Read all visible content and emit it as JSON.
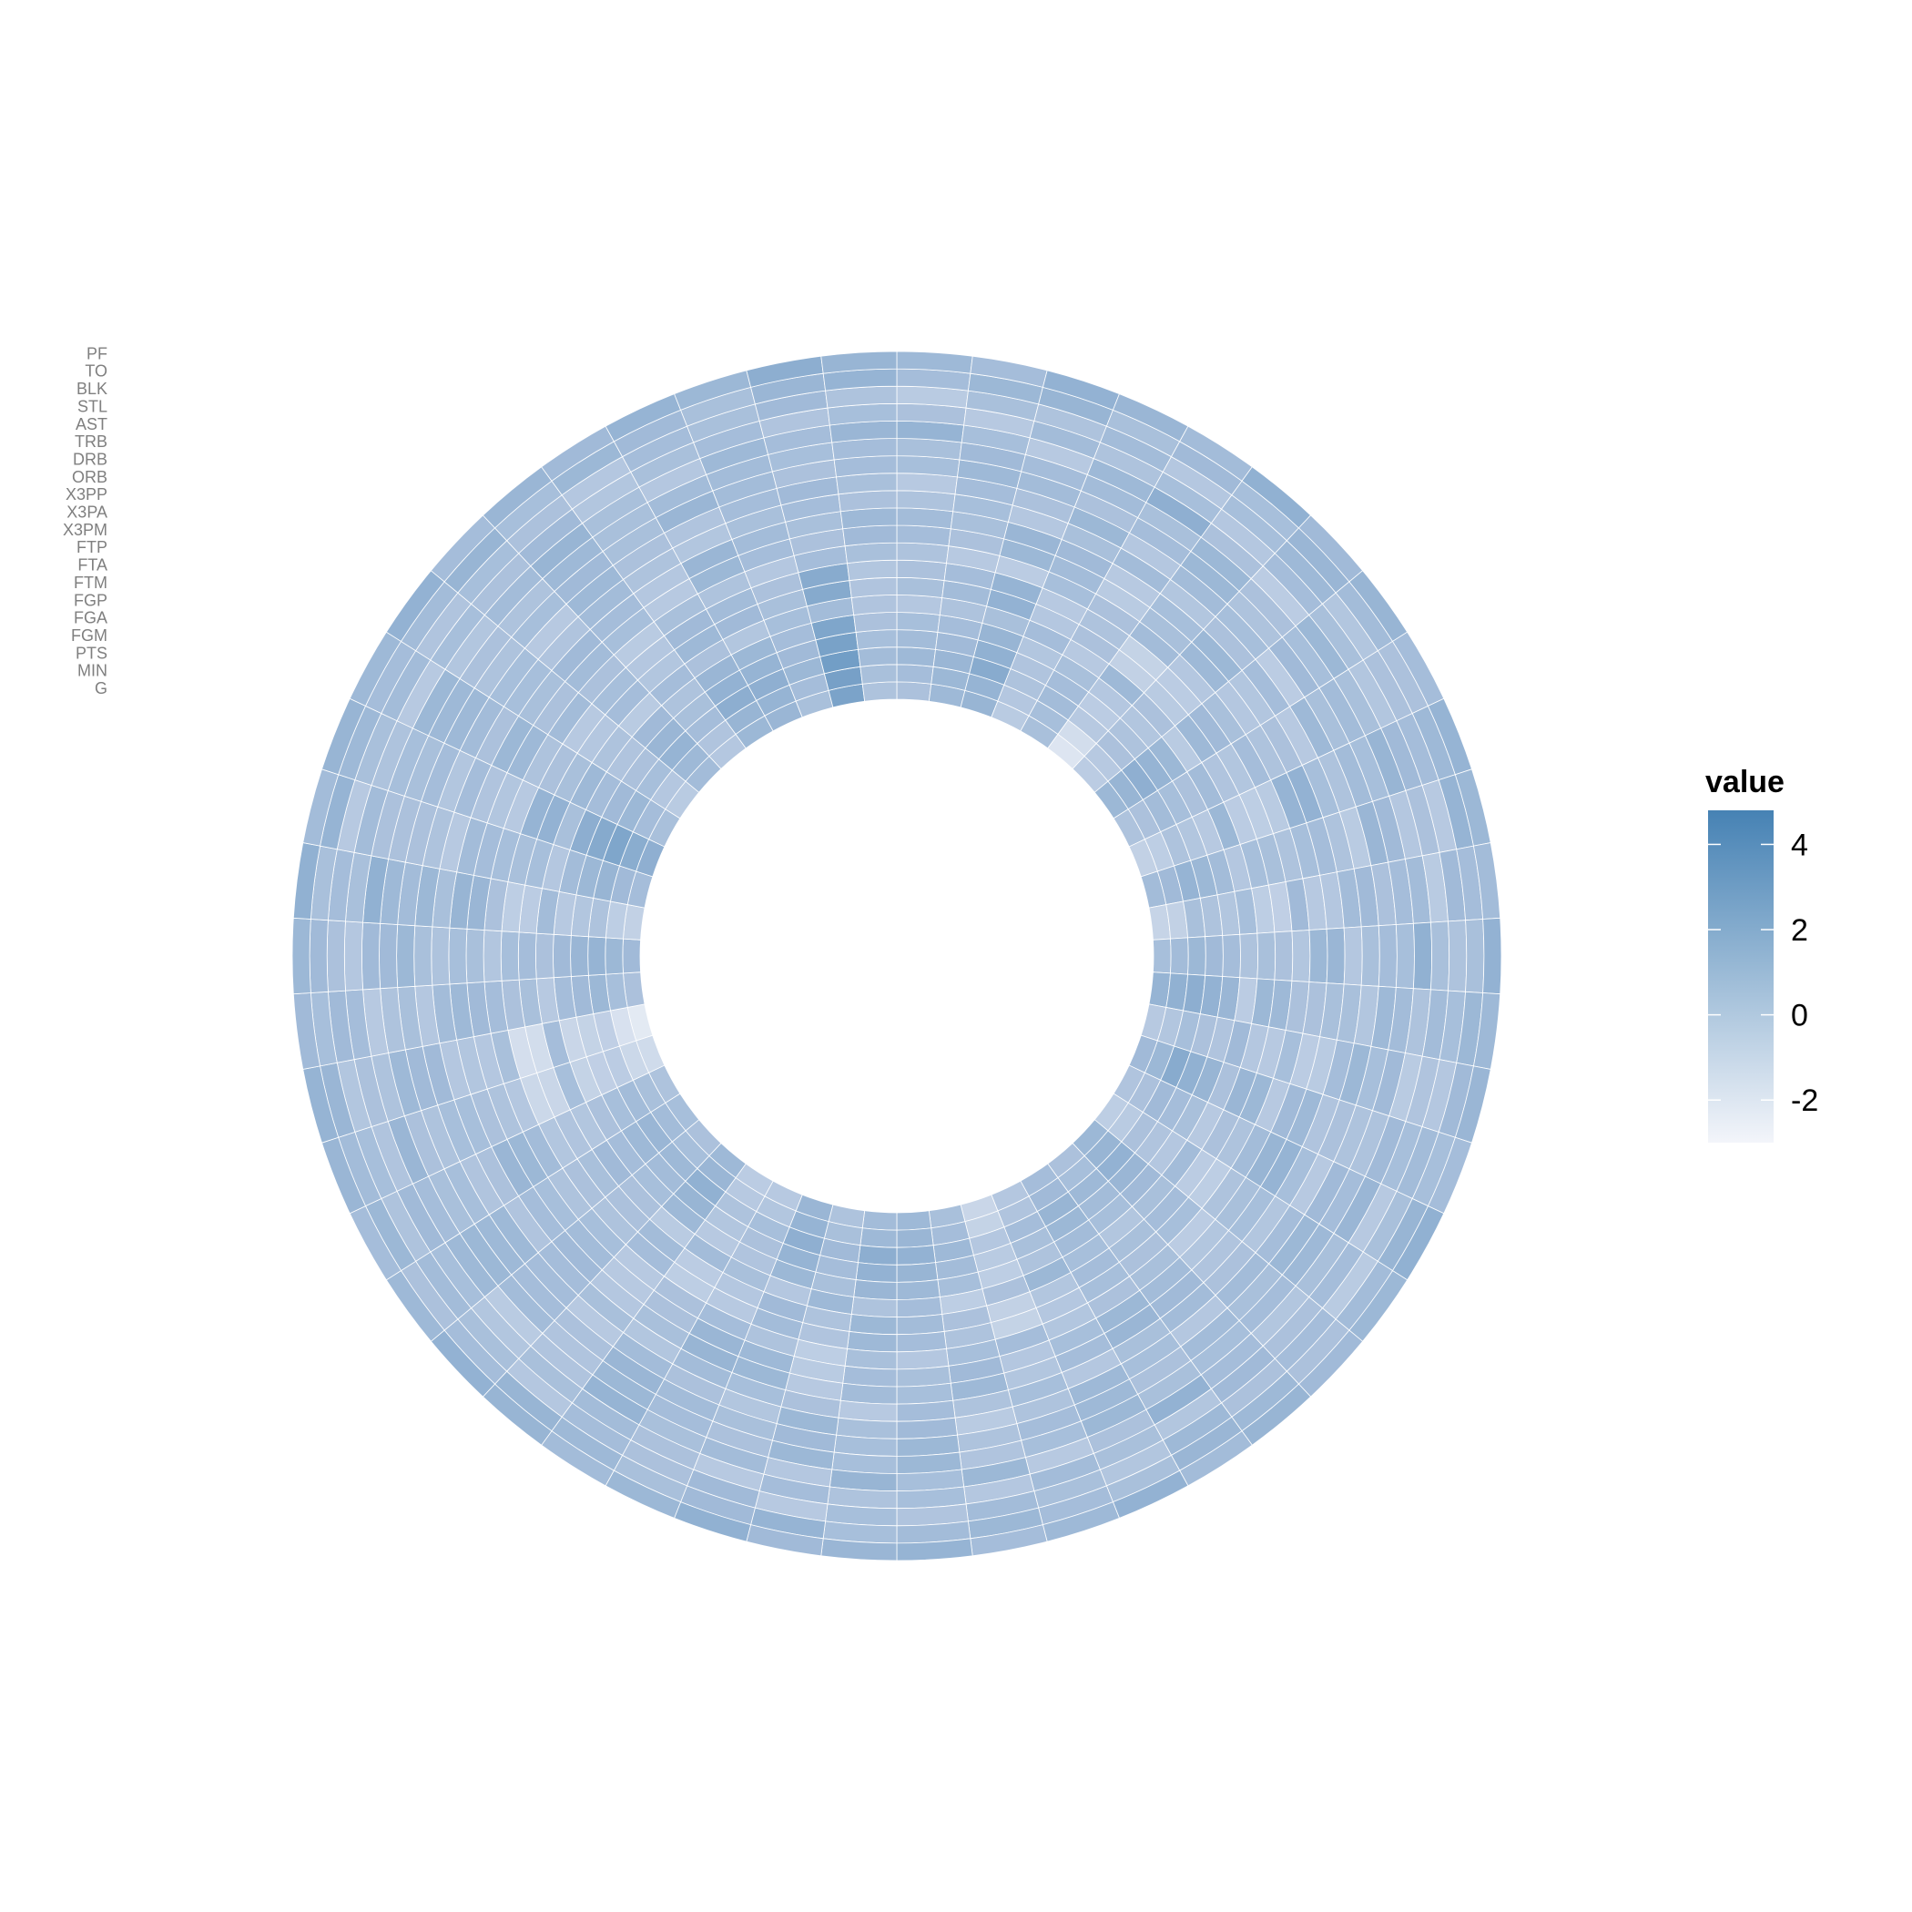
{
  "chart_data": {
    "type": "heatmap",
    "layout": "polar",
    "title": "",
    "rows": [
      "G",
      "MIN",
      "PTS",
      "FGM",
      "FGA",
      "FGP",
      "FTM",
      "FTA",
      "FTP",
      "X3PM",
      "X3PA",
      "X3PP",
      "ORB",
      "DRB",
      "TRB",
      "AST",
      "STL",
      "BLK",
      "TO",
      "PF"
    ],
    "n_columns": 50,
    "value_range": [
      -3,
      4.8
    ],
    "cell_values": [
      [
        0.2,
        0.8,
        1.1,
        -0.4,
        0.3,
        -2.0,
        -0.5,
        0.9,
        0.1,
        -0.8,
        0.6,
        -1.0,
        0.4,
        1.2,
        -0.3,
        0.7,
        0.0,
        -0.6,
        0.9,
        0.2,
        0.5,
        -0.2,
        -1.1,
        0.3,
        0.8,
        0.6,
        0.1,
        1.0,
        -0.3,
        -0.5,
        0.8,
        0.2,
        0.4,
        0.1,
        -1.4,
        -2.3,
        0.2,
        0.7,
        -0.8,
        0.5,
        1.5,
        0.3,
        -0.4,
        0.6,
        -0.2,
        0.9,
        1.0,
        0.3,
        2.4,
        0.1
      ],
      [
        0.5,
        0.9,
        1.2,
        -0.2,
        0.4,
        -1.5,
        -0.3,
        1.1,
        0.2,
        -0.6,
        0.7,
        -0.8,
        0.6,
        1.4,
        -0.1,
        0.9,
        0.2,
        -0.4,
        1.1,
        0.4,
        0.7,
        0.0,
        -0.9,
        0.5,
        1.0,
        0.8,
        0.3,
        1.2,
        -0.1,
        -0.3,
        1.0,
        0.4,
        0.6,
        0.3,
        -1.2,
        -1.8,
        0.4,
        0.9,
        -0.6,
        0.7,
        1.7,
        0.5,
        -0.2,
        0.8,
        0.0,
        1.1,
        1.2,
        0.5,
        2.6,
        0.3
      ],
      [
        0.8,
        1.0,
        1.8,
        0.1,
        0.6,
        -0.3,
        0.2,
        1.5,
        0.6,
        0.1,
        1.2,
        0.3,
        0.9,
        1.6,
        0.4,
        1.8,
        0.7,
        0.2,
        1.3,
        0.8,
        1.1,
        0.5,
        -0.2,
        0.8,
        1.3,
        1.6,
        0.7,
        1.5,
        0.4,
        0.1,
        1.4,
        0.8,
        1.0,
        0.6,
        -0.5,
        -0.7,
        0.9,
        1.2,
        0.1,
        1.1,
        2.2,
        0.9,
        0.4,
        1.2,
        0.5,
        1.6,
        1.5,
        0.9,
        2.8,
        0.6
      ],
      [
        0.6,
        0.7,
        1.4,
        0.0,
        0.5,
        -0.5,
        0.1,
        1.2,
        0.4,
        -0.1,
        0.9,
        0.1,
        0.7,
        1.3,
        0.2,
        1.4,
        0.5,
        0.0,
        1.0,
        0.6,
        0.9,
        0.3,
        -0.4,
        0.6,
        1.1,
        1.3,
        0.5,
        1.2,
        0.2,
        -0.1,
        1.1,
        0.6,
        0.8,
        0.4,
        -0.7,
        -0.9,
        0.7,
        1.0,
        -0.1,
        0.9,
        1.9,
        0.7,
        0.2,
        1.0,
        0.3,
        1.3,
        1.2,
        0.7,
        2.5,
        0.4
      ],
      [
        0.4,
        0.5,
        1.1,
        -0.1,
        0.3,
        -0.2,
        -0.1,
        0.9,
        0.2,
        -0.3,
        0.6,
        -0.1,
        0.5,
        1.0,
        0.0,
        1.1,
        0.3,
        -0.2,
        0.7,
        0.4,
        0.6,
        0.1,
        -0.6,
        0.4,
        0.8,
        1.0,
        0.3,
        0.9,
        0.0,
        -0.3,
        0.8,
        0.4,
        0.5,
        0.2,
        -0.9,
        -1.1,
        0.5,
        0.7,
        -0.3,
        0.6,
        1.6,
        0.5,
        0.0,
        0.7,
        0.1,
        1.0,
        0.9,
        0.5,
        2.2,
        0.2
      ],
      [
        -0.2,
        0.1,
        0.3,
        0.5,
        -0.3,
        0.8,
        0.2,
        -0.4,
        0.6,
        0.9,
        -0.2,
        0.4,
        0.1,
        -0.5,
        0.7,
        0.2,
        -0.3,
        0.6,
        0.3,
        -0.1,
        0.4,
        0.9,
        0.2,
        -0.6,
        0.5,
        0.1,
        0.8,
        -0.2,
        0.3,
        0.6,
        -0.4,
        0.2,
        0.7,
        -0.1,
        0.4,
        0.5,
        -0.3,
        0.2,
        0.6,
        -0.2,
        0.3,
        0.8,
        0.1,
        -0.4,
        0.5,
        0.2,
        -0.1,
        0.4,
        0.6,
        0.0
      ],
      [
        0.3,
        0.6,
        1.3,
        -0.2,
        0.2,
        -0.8,
        -0.4,
        0.8,
        0.0,
        -0.5,
        0.4,
        -0.6,
        0.3,
        0.9,
        -0.2,
        1.0,
        0.2,
        -0.5,
        0.5,
        0.3,
        0.5,
        -0.1,
        -0.8,
        0.2,
        0.6,
        0.9,
        0.1,
        0.7,
        -0.2,
        -0.5,
        0.6,
        0.2,
        0.3,
        0.0,
        -1.1,
        -1.5,
        0.3,
        0.5,
        -0.5,
        0.4,
        1.3,
        0.3,
        -0.2,
        0.5,
        -0.1,
        0.8,
        0.7,
        0.3,
        1.9,
        0.0
      ],
      [
        0.2,
        0.5,
        1.2,
        -0.3,
        0.1,
        -0.9,
        -0.5,
        0.7,
        -0.1,
        -0.6,
        0.3,
        -0.7,
        0.2,
        0.8,
        -0.3,
        0.9,
        0.1,
        -0.6,
        0.4,
        0.2,
        0.4,
        -0.2,
        -0.9,
        0.1,
        0.5,
        0.8,
        0.0,
        0.6,
        -0.3,
        -0.6,
        0.5,
        0.1,
        0.2,
        -0.1,
        -1.2,
        -1.6,
        0.2,
        0.4,
        -0.6,
        0.3,
        1.2,
        0.2,
        -0.3,
        0.4,
        -0.2,
        0.7,
        0.6,
        0.2,
        1.8,
        -0.1
      ],
      [
        0.1,
        -0.3,
        -0.5,
        0.4,
        0.2,
        0.6,
        -0.2,
        0.3,
        0.5,
        -0.4,
        0.1,
        0.7,
        -0.1,
        0.2,
        0.4,
        -0.3,
        0.6,
        0.1,
        -0.5,
        0.3,
        0.2,
        -0.1,
        0.5,
        0.4,
        -0.2,
        0.3,
        -0.6,
        0.1,
        0.5,
        0.2,
        -0.3,
        0.4,
        0.1,
        0.6,
        -0.2,
        0.3,
        0.5,
        -0.1,
        0.2,
        0.4,
        -0.3,
        0.1,
        0.6,
        0.2,
        -0.4,
        0.3,
        0.1,
        -0.2,
        0.5,
        0.3
      ],
      [
        0.5,
        0.2,
        0.9,
        0.6,
        -0.4,
        0.3,
        0.8,
        -0.2,
        0.1,
        1.2,
        0.4,
        -0.3,
        0.9,
        0.2,
        -0.5,
        0.7,
        1.1,
        0.3,
        -0.1,
        0.6,
        0.9,
        0.4,
        -0.2,
        0.7,
        0.3,
        0.5,
        -0.4,
        0.8,
        1.0,
        0.2,
        -0.3,
        0.6,
        0.4,
        0.9,
        0.1,
        -0.2,
        0.7,
        0.3,
        1.0,
        0.5,
        -0.1,
        0.8,
        0.2,
        0.6,
        0.4,
        -0.3,
        0.9,
        0.5,
        0.2,
        0.7
      ],
      [
        0.6,
        0.3,
        1.0,
        0.7,
        -0.3,
        0.4,
        0.9,
        -0.1,
        0.2,
        1.3,
        0.5,
        -0.2,
        1.0,
        0.3,
        -0.4,
        0.8,
        1.2,
        0.4,
        0.0,
        0.7,
        1.0,
        0.5,
        -0.1,
        0.8,
        0.4,
        0.6,
        -0.3,
        0.9,
        1.1,
        0.3,
        -0.2,
        0.7,
        0.5,
        1.0,
        0.2,
        -0.1,
        0.8,
        0.4,
        1.1,
        0.6,
        0.0,
        0.9,
        0.3,
        0.7,
        0.5,
        -0.2,
        1.0,
        0.6,
        0.3,
        0.8
      ],
      [
        0.1,
        0.4,
        -0.2,
        0.3,
        0.6,
        -0.1,
        0.2,
        0.5,
        -0.3,
        0.4,
        0.1,
        0.6,
        -0.2,
        0.3,
        0.5,
        0.0,
        0.4,
        -0.1,
        0.2,
        0.6,
        0.3,
        -0.2,
        0.4,
        0.1,
        0.5,
        -0.3,
        0.2,
        0.4,
        0.6,
        -0.1,
        0.3,
        0.5,
        0.0,
        0.2,
        0.4,
        -0.2,
        0.6,
        0.1,
        0.3,
        -0.3,
        0.5,
        0.2,
        0.4,
        0.0,
        0.6,
        0.1,
        -0.1,
        0.3,
        0.5,
        0.2
      ],
      [
        -0.3,
        0.5,
        0.2,
        0.9,
        -0.2,
        0.6,
        0.4,
        -0.5,
        0.8,
        0.1,
        -0.4,
        0.7,
        0.3,
        -0.1,
        0.9,
        0.2,
        -0.3,
        0.5,
        0.6,
        -0.2,
        0.4,
        0.8,
        0.1,
        -0.4,
        0.7,
        0.3,
        0.9,
        -0.1,
        0.2,
        0.6,
        -0.3,
        0.5,
        0.8,
        0.0,
        0.4,
        0.7,
        -0.2,
        0.3,
        0.9,
        0.1,
        -0.1,
        0.6,
        0.4,
        -0.3,
        0.8,
        0.2,
        0.0,
        0.5,
        0.7,
        0.3
      ],
      [
        0.4,
        0.8,
        0.6,
        0.2,
        0.5,
        0.9,
        0.1,
        0.7,
        0.3,
        0.6,
        1.0,
        0.2,
        0.5,
        0.8,
        0.4,
        0.1,
        0.7,
        0.9,
        0.3,
        0.6,
        0.2,
        0.8,
        0.5,
        0.1,
        0.9,
        0.4,
        0.7,
        0.3,
        0.6,
        1.0,
        0.2,
        0.5,
        0.8,
        0.4,
        0.1,
        0.7,
        0.3,
        0.9,
        0.6,
        0.2,
        0.5,
        0.8,
        0.1,
        0.4,
        0.7,
        0.3,
        1.0,
        0.6,
        0.2,
        0.5
      ],
      [
        0.3,
        0.7,
        0.5,
        0.6,
        0.3,
        0.9,
        0.2,
        0.4,
        0.6,
        0.4,
        0.7,
        0.5,
        0.4,
        0.6,
        0.7,
        0.1,
        0.5,
        0.8,
        0.5,
        0.4,
        0.3,
        0.9,
        0.4,
        0.0,
        0.9,
        0.4,
        0.9,
        0.2,
        0.5,
        0.9,
        0.0,
        0.6,
        0.9,
        0.3,
        0.2,
        0.8,
        0.1,
        0.7,
        0.8,
        0.2,
        0.3,
        0.8,
        0.2,
        0.1,
        0.8,
        0.3,
        0.6,
        0.6,
        0.4,
        0.5
      ],
      [
        1.2,
        0.4,
        -0.3,
        0.8,
        1.5,
        0.2,
        -0.5,
        0.9,
        0.3,
        1.1,
        -0.2,
        0.6,
        1.4,
        0.1,
        -0.4,
        0.7,
        1.0,
        0.3,
        -0.1,
        0.5,
        1.3,
        0.2,
        -0.3,
        0.9,
        0.4,
        1.1,
        -0.2,
        0.6,
        0.3,
        1.2,
        0.0,
        -0.4,
        0.8,
        0.5,
        1.0,
        0.1,
        -0.3,
        0.7,
        1.4,
        0.2,
        0.4,
        0.9,
        -0.1,
        0.6,
        1.1,
        0.3,
        -0.2,
        0.8,
        0.5,
        1.0
      ],
      [
        0.2,
        -0.3,
        0.6,
        0.1,
        0.4,
        -0.2,
        0.5,
        0.3,
        -0.1,
        0.7,
        0.2,
        -0.4,
        0.3,
        0.6,
        0.0,
        0.4,
        -0.3,
        0.5,
        0.2,
        0.7,
        -0.1,
        0.3,
        0.6,
        -0.2,
        0.4,
        0.1,
        0.5,
        -0.3,
        0.2,
        0.6,
        0.3,
        -0.1,
        0.4,
        0.7,
        0.0,
        0.2,
        0.5,
        -0.2,
        0.3,
        0.6,
        0.1,
        -0.3,
        0.4,
        0.2,
        0.7,
        -0.1,
        0.3,
        0.5,
        0.0,
        0.4
      ],
      [
        -0.4,
        0.3,
        0.1,
        0.6,
        -0.2,
        0.4,
        0.8,
        -0.1,
        0.2,
        0.5,
        -0.3,
        0.7,
        0.1,
        0.4,
        -0.2,
        0.6,
        0.3,
        -0.4,
        0.5,
        0.2,
        0.8,
        -0.1,
        0.3,
        0.6,
        0.0,
        0.4,
        -0.3,
        0.7,
        0.2,
        0.5,
        -0.2,
        0.3,
        0.6,
        0.1,
        0.4,
        -0.1,
        0.7,
        0.2,
        0.5,
        -0.3,
        0.3,
        0.6,
        0.0,
        0.4,
        0.2,
        -0.2,
        0.5,
        0.3,
        0.7,
        0.1
      ],
      [
        0.5,
        0.9,
        1.1,
        0.3,
        0.7,
        0.4,
        1.0,
        0.6,
        0.2,
        0.8,
        1.2,
        0.5,
        0.3,
        0.9,
        0.7,
        0.4,
        1.1,
        0.6,
        0.2,
        0.8,
        1.0,
        0.3,
        0.5,
        0.9,
        0.6,
        0.4,
        1.2,
        0.7,
        0.3,
        0.8,
        1.1,
        0.5,
        0.2,
        0.9,
        0.6,
        1.0,
        0.4,
        0.7,
        0.3,
        1.2,
        0.8,
        0.5,
        0.6,
        1.1,
        0.4,
        0.9,
        0.7,
        0.3,
        1.0,
        1.2
      ],
      [
        0.8,
        0.5,
        1.3,
        1.0,
        0.6,
        1.4,
        0.7,
        1.1,
        0.5,
        1.2,
        0.9,
        0.6,
        1.3,
        0.8,
        1.0,
        0.5,
        1.4,
        0.9,
        0.7,
        1.1,
        0.6,
        1.3,
        0.8,
        0.5,
        1.2,
        1.0,
        0.7,
        1.4,
        0.9,
        0.6,
        1.1,
        1.3,
        0.8,
        0.5,
        1.0,
        1.2,
        0.7,
        0.9,
        1.4,
        0.6,
        1.1,
        0.8,
        1.3,
        0.5,
        1.0,
        0.7,
        1.2,
        0.9,
        1.6,
        1.1
      ]
    ],
    "legend": {
      "title": "value",
      "ticks": [
        4,
        2,
        0,
        -2
      ],
      "color_low": "#f3f5fa",
      "color_high": "#4682b4",
      "placement": "right"
    },
    "grid": false
  }
}
